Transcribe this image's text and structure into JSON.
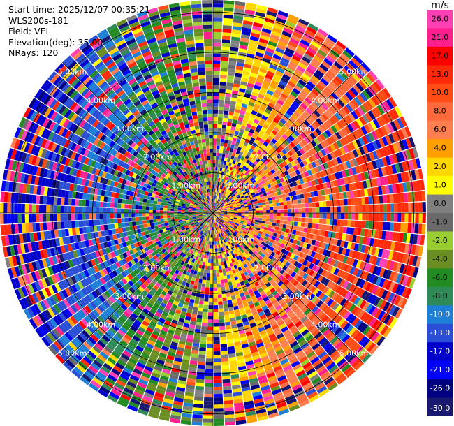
{
  "header": {
    "start_time": "Start time: 2025/12/07 00:35:21",
    "instrument": "WLS200s-181",
    "field": "Field: VEL",
    "elevation": "Elevation(deg): 35.00",
    "nrays": "NRays: 120"
  },
  "chart_data": {
    "type": "heatmap",
    "projection": "polar-ppi",
    "field": "VEL",
    "nrays": 120,
    "elevation_deg": 35.0,
    "range_km": [
      0,
      5.3
    ],
    "range_ring_labels": [
      "1.00km",
      "2.00km",
      "3.00km",
      "4.00km",
      "5.00km"
    ],
    "range_ring_values_km": [
      1,
      2,
      3,
      4,
      5
    ],
    "colorbar": {
      "unit": "m/s",
      "tick_labels": [
        "26.0",
        "21.0",
        "17.0",
        "13.0",
        "10.0",
        "8.0",
        "6.0",
        "4.0",
        "2.0",
        "1.0",
        "0.0",
        "-1.0",
        "-2.0",
        "-4.0",
        "-6.0",
        "-8.0",
        "-10.0",
        "-13.0",
        "-17.0",
        "-21.0",
        "-26.0",
        "-30.0"
      ],
      "bins": [
        {
          "from": 26,
          "to": 30,
          "color": "#ff3fb4"
        },
        {
          "from": 21,
          "to": 26,
          "color": "#ff1f8c"
        },
        {
          "from": 17,
          "to": 21,
          "color": "#ff0000"
        },
        {
          "from": 13,
          "to": 17,
          "color": "#ff2a0a"
        },
        {
          "from": 10,
          "to": 13,
          "color": "#ff4c14"
        },
        {
          "from": 8,
          "to": 10,
          "color": "#ff6a3c"
        },
        {
          "from": 6,
          "to": 8,
          "color": "#ff7f50"
        },
        {
          "from": 4,
          "to": 6,
          "color": "#ff9f00"
        },
        {
          "from": 2,
          "to": 4,
          "color": "#ffd700"
        },
        {
          "from": 1,
          "to": 2,
          "color": "#ffff00"
        },
        {
          "from": 0,
          "to": 1,
          "color": "#808080"
        },
        {
          "from": -1,
          "to": 0,
          "color": "#696969"
        },
        {
          "from": -2,
          "to": -1,
          "color": "#9acd32"
        },
        {
          "from": -4,
          "to": -2,
          "color": "#6b8e23"
        },
        {
          "from": -6,
          "to": -4,
          "color": "#228b22"
        },
        {
          "from": -8,
          "to": -6,
          "color": "#2e8b57"
        },
        {
          "from": -10,
          "to": -8,
          "color": "#1e7fd6"
        },
        {
          "from": -13,
          "to": -10,
          "color": "#2a4fd6"
        },
        {
          "from": -17,
          "to": -13,
          "color": "#0000cd"
        },
        {
          "from": -21,
          "to": -17,
          "color": "#0000ff"
        },
        {
          "from": -26,
          "to": -21,
          "color": "#000080"
        },
        {
          "from": -30,
          "to": -26,
          "color": "#191970"
        }
      ]
    },
    "notes": "Dense, noisy radial velocity field; predominantly negative (blue/green) to the west and north-west, positive (orange/yellow) to the east and south-east, mixed near center."
  }
}
